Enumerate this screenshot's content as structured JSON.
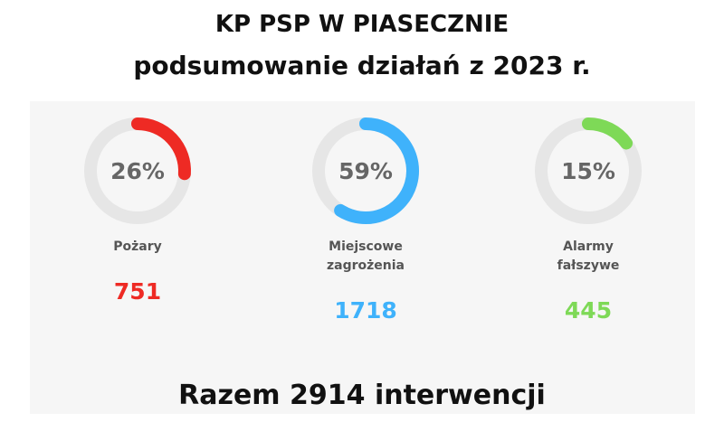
{
  "chart_data": {
    "type": "donut",
    "title": "KP PSP W PIASECZNIE",
    "subtitle": "podsumowanie działań z 2023 r.",
    "categories": [
      "Pożary",
      "Miejscowe zagrożenia",
      "Alarmy fałszywe"
    ],
    "values": [
      26,
      59,
      15
    ],
    "value_labels": [
      "26%",
      "59%",
      "15%"
    ],
    "counts": [
      751,
      1718,
      445
    ],
    "colors": [
      "#ee2a24",
      "#3fb2fb",
      "#7ed957"
    ],
    "track_color": "#e6e6e6",
    "footer": "Razem 2914 interwencji"
  }
}
